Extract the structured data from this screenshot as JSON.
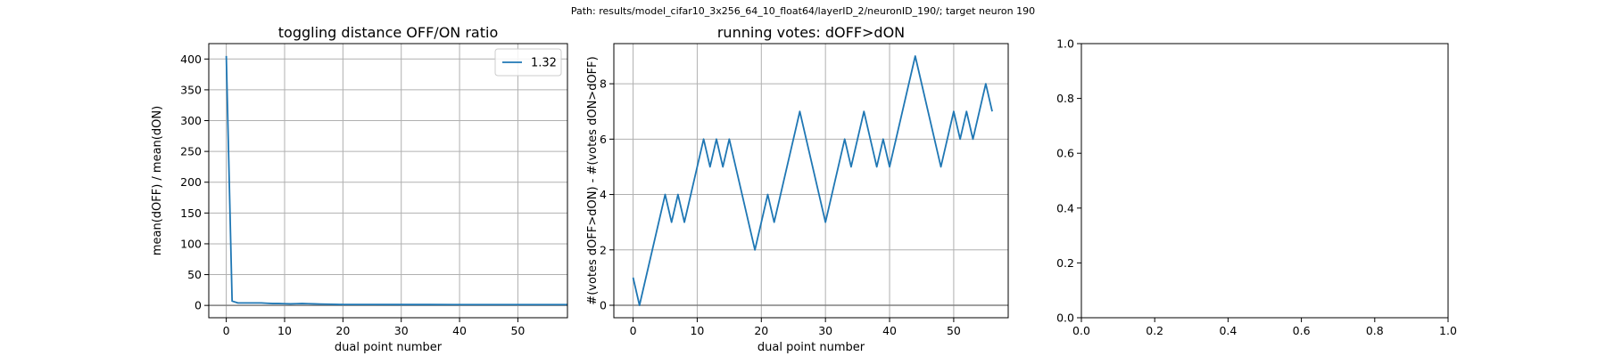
{
  "suptitle": "Path: results/model_cifar10_3x256_64_10_float64/layerID_2/neuronID_190/; target neuron 190",
  "chart_data": [
    {
      "type": "line",
      "title": "toggling distance OFF/ON ratio",
      "xlabel": "dual point number",
      "ylabel": "mean(dOFF) / mean(dON)",
      "xlim": [
        -3,
        58.5
      ],
      "ylim": [
        -20,
        425
      ],
      "xticks": [
        0,
        10,
        20,
        30,
        40,
        50
      ],
      "yticks": [
        0,
        50,
        100,
        150,
        200,
        250,
        300,
        350,
        400
      ],
      "grid": true,
      "legend": "top-right",
      "hline": 0,
      "series": [
        {
          "name": "1.32",
          "color": "#1f77b4",
          "x": [
            0,
            1,
            2,
            3,
            4,
            5,
            6,
            7,
            8,
            9,
            10,
            11,
            12,
            13,
            14,
            15,
            16,
            17,
            18,
            19,
            20,
            25,
            30,
            35,
            40,
            45,
            50,
            55,
            58.5
          ],
          "y": [
            405,
            7,
            4,
            4,
            4,
            4,
            4,
            3.5,
            3,
            3,
            2.8,
            2.5,
            2.8,
            3,
            2.8,
            2.5,
            2.2,
            2,
            1.8,
            1.6,
            1.5,
            1.5,
            1.4,
            1.4,
            1.35,
            1.35,
            1.32,
            1.32,
            1.32
          ]
        }
      ]
    },
    {
      "type": "line",
      "title": "running votes: dOFF>dON",
      "xlabel": "dual point number",
      "ylabel": "#(votes dOFF>dON) - #(votes dON>dOFF)",
      "xlim": [
        -3,
        58.5
      ],
      "ylim": [
        -0.45,
        9.45
      ],
      "xticks": [
        0,
        10,
        20,
        30,
        40,
        50
      ],
      "yticks": [
        0,
        2,
        4,
        6,
        8
      ],
      "grid": true,
      "hline": 0,
      "series": [
        {
          "color": "#1f77b4",
          "x": [
            0,
            1,
            5,
            6,
            7,
            8,
            11,
            12,
            13,
            14,
            15,
            19,
            21,
            22,
            26,
            30,
            33,
            34,
            36,
            38,
            39,
            40,
            44,
            48,
            50,
            51,
            52,
            53,
            55,
            56
          ],
          "y": [
            1,
            0,
            4,
            3,
            4,
            3,
            6,
            5,
            6,
            5,
            6,
            2,
            4,
            3,
            7,
            3,
            6,
            5,
            7,
            5,
            6,
            5,
            9,
            5,
            7,
            6,
            7,
            6,
            8,
            7
          ]
        }
      ]
    },
    {
      "type": "line",
      "xlim": [
        0,
        1
      ],
      "ylim": [
        0,
        1
      ],
      "xticks": [
        "0.0",
        "0.2",
        "0.4",
        "0.6",
        "0.8",
        "1.0"
      ],
      "yticks": [
        "0.0",
        "0.2",
        "0.4",
        "0.6",
        "0.8",
        "1.0"
      ],
      "grid": false,
      "series": []
    }
  ]
}
